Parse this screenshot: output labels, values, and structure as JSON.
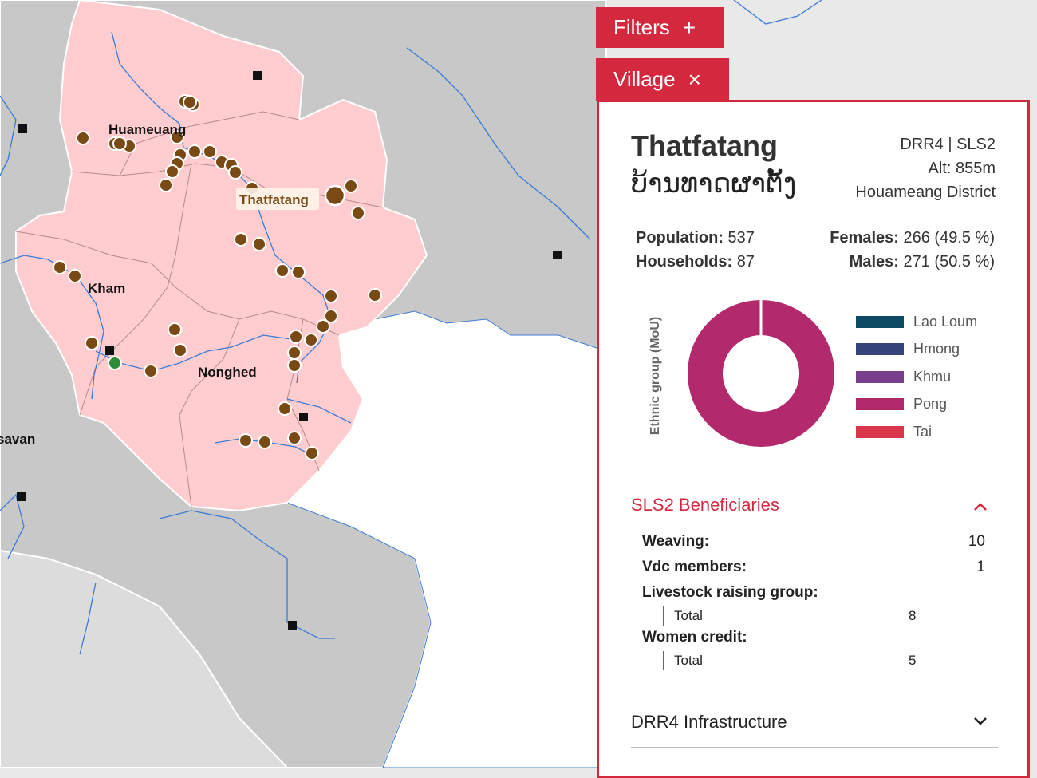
{
  "map": {
    "labels": {
      "huameuang": "Huameuang",
      "kham": "Kham",
      "nonghed": "Nonghed",
      "savan": "savan",
      "thatfatang": "Thatfatang"
    },
    "colors": {
      "province": "#ffcdd0",
      "neighbor": "#c8c8c8",
      "outer": "#e9e9e9",
      "white_region": "#ffffff",
      "river": "#3a7bd5",
      "village": "#7a4a14",
      "highlight_village": "#2e8b3a"
    }
  },
  "filters": {
    "label": "Filters",
    "icon": "plus-icon",
    "symbol": "+"
  },
  "village_tab": {
    "label": "Village",
    "icon": "close-icon",
    "symbol": "×"
  },
  "village": {
    "name": "Thatfatang",
    "name_lao": "ບ້ານທາດຜາຕັ້ງ",
    "programs": "DRR4 | SLS2",
    "altitude": "Alt: 855m",
    "district": "Houameang District",
    "population_label": "Population:",
    "population": "537",
    "households_label": "Households:",
    "households": "87",
    "females_label": "Females:",
    "females": "266 (49.5 %)",
    "males_label": "Males:",
    "males": "271 (50.5 %)"
  },
  "chart_data": {
    "type": "pie",
    "ylabel": "Ethnic group (MoU)",
    "categories": [
      "Lao Loum",
      "Hmong",
      "Khmu",
      "Pong",
      "Tai"
    ],
    "colors": [
      "#0d4a63",
      "#34447a",
      "#7a3f8f",
      "#b3296e",
      "#d9364a"
    ],
    "values": [
      0,
      0,
      0,
      100,
      0
    ]
  },
  "sls2": {
    "title": "SLS2 Beneficiaries",
    "icon": "chevron-up-icon",
    "chevron": "^",
    "weaving_label": "Weaving:",
    "weaving": "10",
    "vdc_label": "Vdc members:",
    "vdc": "1",
    "livestock_label": "Livestock raising group:",
    "livestock_total_label": "Total",
    "livestock_total": "8",
    "women_label": "Women credit:",
    "women_total_label": "Total",
    "women_total": "5"
  },
  "drr4": {
    "title": "DRR4 Infrastructure",
    "icon": "chevron-down-icon",
    "chevron": "⌄"
  }
}
